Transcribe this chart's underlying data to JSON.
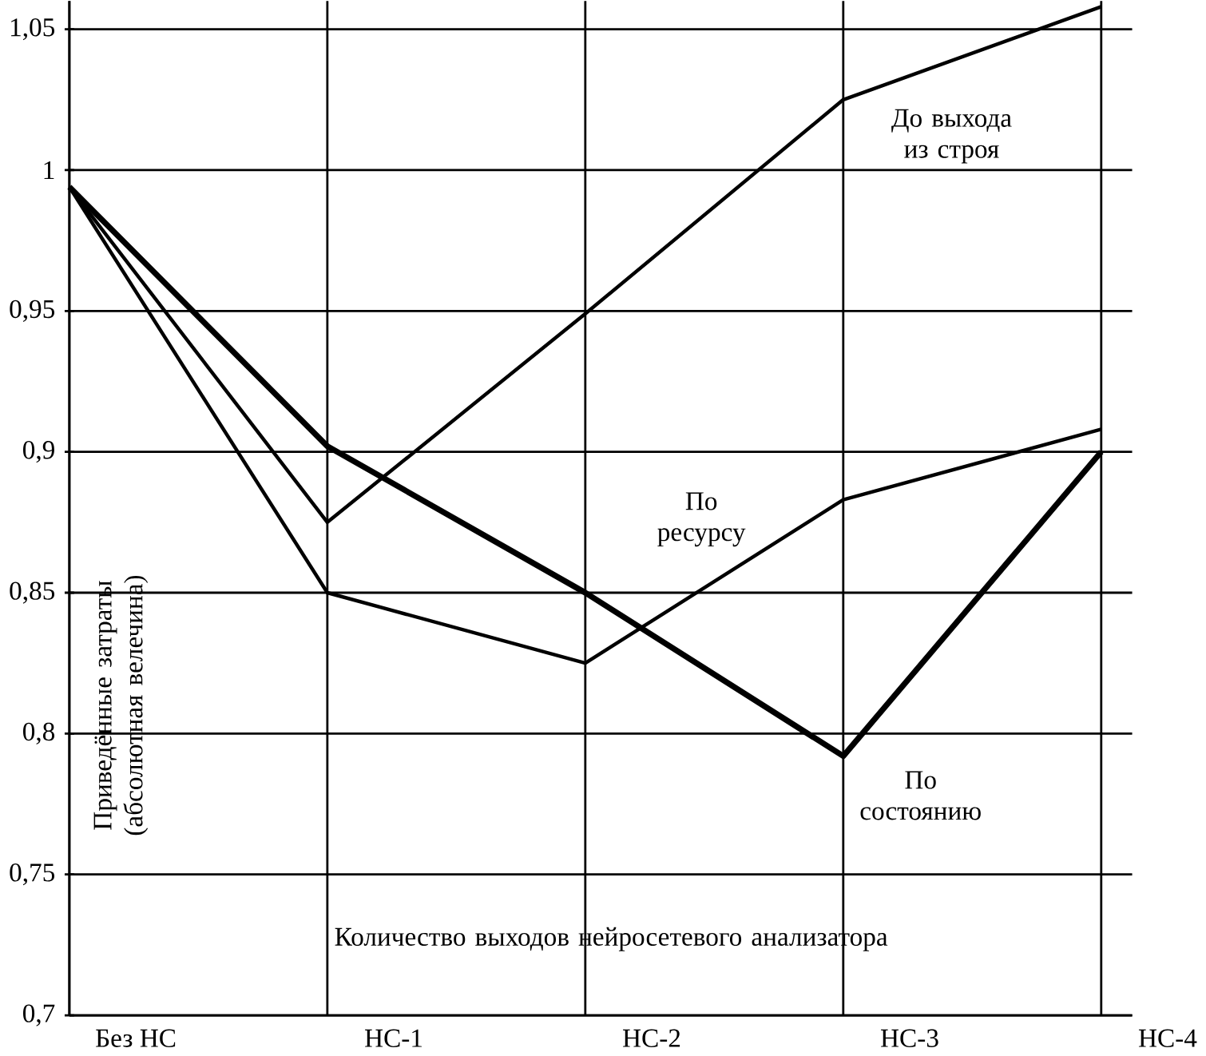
{
  "chart_data": {
    "type": "line",
    "xlabel": "Количество выходов нейросетевого анализатора",
    "ylabel": "Приведённые затраты (абсолютная велечина)",
    "categories": [
      "Без НС",
      "НС-1",
      "НС-2",
      "НС-3",
      "НС-4"
    ],
    "series": [
      {
        "name": "До выхода из строя",
        "color": "#000000",
        "values": [
          0.994,
          0.875,
          0.949,
          1.025,
          1.058
        ]
      },
      {
        "name": "По ресурсу",
        "color": "#000000",
        "values": [
          0.994,
          0.85,
          0.825,
          0.883,
          0.908
        ]
      },
      {
        "name": "По состоянию",
        "color": "#000000",
        "values": [
          0.994,
          0.902,
          0.85,
          0.792,
          0.9
        ]
      }
    ],
    "ylim": [
      0.7,
      1.06
    ],
    "yticks": [
      {
        "value": 0.7,
        "label": "0,7"
      },
      {
        "value": 0.75,
        "label": "0,75"
      },
      {
        "value": 0.8,
        "label": "0,8"
      },
      {
        "value": 0.85,
        "label": "0,85"
      },
      {
        "value": 0.9,
        "label": "0,9"
      },
      {
        "value": 0.95,
        "label": "0,95"
      },
      {
        "value": 1,
        "label": "1"
      },
      {
        "value": 1.05,
        "label": "1,05"
      }
    ],
    "grid": true,
    "legend": false,
    "marker": "none",
    "line_style": "solid"
  }
}
